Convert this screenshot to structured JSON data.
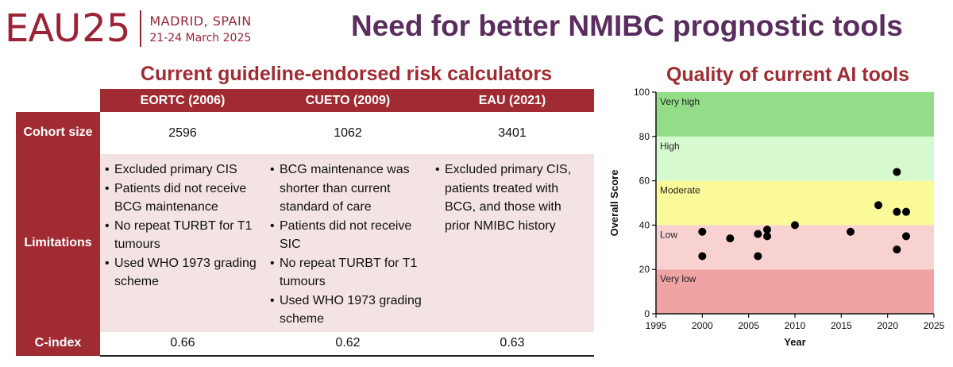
{
  "header": {
    "logo_eau": "EAU",
    "logo_year": "25",
    "location": "MADRID, SPAIN",
    "dates": "21-24 March 2025",
    "title": "Need for better NMIBC prognostic tools"
  },
  "table": {
    "title": "Current guideline-endorsed risk calculators",
    "columns": [
      "EORTC (2006)",
      "CUETO (2009)",
      "EAU (2021)"
    ],
    "row_labels": {
      "cohort": "Cohort size",
      "limitations": "Limitations",
      "cindex": "C-index"
    },
    "cohort_size": [
      "2596",
      "1062",
      "3401"
    ],
    "limitations": [
      [
        "Excluded primary CIS",
        "Patients did not receive BCG maintenance",
        "No repeat TURBT for T1 tumours",
        "Used WHO 1973 grading scheme"
      ],
      [
        "BCG maintenance was shorter than current standard of care",
        "Patients did not receive SIC",
        "No repeat TURBT for T1 tumours",
        "Used WHO 1973 grading scheme"
      ],
      [
        "Excluded primary CIS, patients treated with BCG, and those with prior NMIBC history"
      ]
    ],
    "c_index": [
      "0.66",
      "0.62",
      "0.63"
    ]
  },
  "chart_data": {
    "type": "scatter",
    "title": "Quality of current AI tools",
    "xlabel": "Year",
    "ylabel": "Overall Score",
    "xlim": [
      1995,
      2025
    ],
    "ylim": [
      0,
      100
    ],
    "xticks": [
      1995,
      2000,
      2005,
      2010,
      2015,
      2020,
      2025
    ],
    "yticks": [
      0,
      20,
      40,
      60,
      80,
      100
    ],
    "bands": [
      {
        "label": "Very low",
        "from": 0,
        "to": 20,
        "color": "#f0a3a3"
      },
      {
        "label": "Low",
        "from": 20,
        "to": 40,
        "color": "#f8d1d1"
      },
      {
        "label": "Moderate",
        "from": 40,
        "to": 60,
        "color": "#fafa98"
      },
      {
        "label": "High",
        "from": 60,
        "to": 80,
        "color": "#d7f9cf"
      },
      {
        "label": "Very high",
        "from": 80,
        "to": 100,
        "color": "#94dd88"
      }
    ],
    "points": [
      {
        "x": 2000,
        "y": 37
      },
      {
        "x": 2000,
        "y": 26
      },
      {
        "x": 2003,
        "y": 34
      },
      {
        "x": 2006,
        "y": 36
      },
      {
        "x": 2006,
        "y": 26
      },
      {
        "x": 2007,
        "y": 38
      },
      {
        "x": 2007,
        "y": 35
      },
      {
        "x": 2010,
        "y": 40
      },
      {
        "x": 2016,
        "y": 37
      },
      {
        "x": 2019,
        "y": 49
      },
      {
        "x": 2021,
        "y": 64
      },
      {
        "x": 2021,
        "y": 46
      },
      {
        "x": 2021,
        "y": 29
      },
      {
        "x": 2022,
        "y": 46
      },
      {
        "x": 2022,
        "y": 35
      }
    ],
    "point_color": "#000000"
  }
}
